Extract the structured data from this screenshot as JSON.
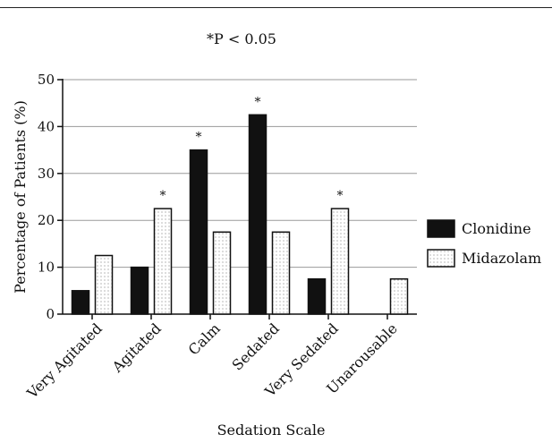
{
  "note": "*P < 0.05",
  "chart_data": {
    "type": "bar",
    "title": "",
    "xlabel": "Sedation Scale",
    "ylabel": "Percentage of Patients (%)",
    "ylim": [
      0,
      50
    ],
    "yticks": [
      0,
      10,
      20,
      30,
      40,
      50
    ],
    "grid": "horizontal",
    "legend_position": "right",
    "categories": [
      "Very Agitated",
      "Agitated",
      "Calm",
      "Sedated",
      "Very Sedated",
      "Unarousable"
    ],
    "series": [
      {
        "name": "Clonidine",
        "values": [
          5,
          10,
          35,
          42.5,
          7.5,
          0
        ],
        "color": "#111111",
        "fill": "solid"
      },
      {
        "name": "Midazolam",
        "values": [
          12.5,
          22.5,
          17.5,
          17.5,
          22.5,
          7.5
        ],
        "color": "#ffffff",
        "fill": "dotted"
      }
    ],
    "significance_mark": "*",
    "annotations": [
      {
        "category": "Agitated",
        "series": "Midazolam",
        "text": "*"
      },
      {
        "category": "Calm",
        "series": "Clonidine",
        "text": "*"
      },
      {
        "category": "Sedated",
        "series": "Clonidine",
        "text": "*"
      },
      {
        "category": "Very Sedated",
        "series": "Midazolam",
        "text": "*"
      }
    ]
  }
}
